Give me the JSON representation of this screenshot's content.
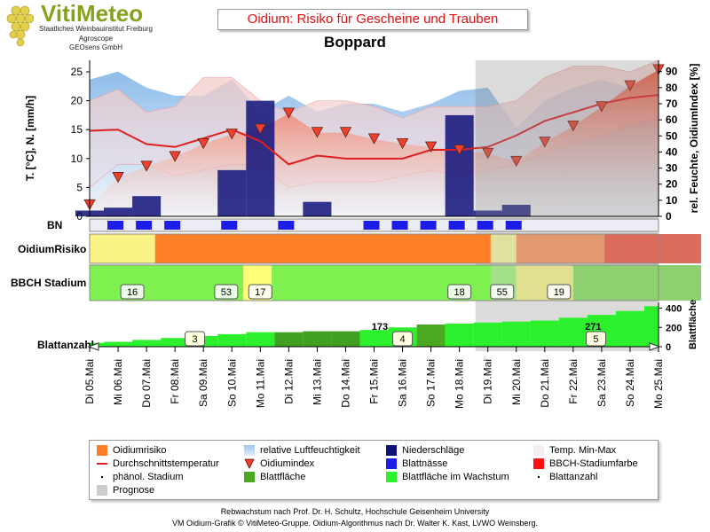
{
  "header": {
    "logo_name": "VitiMeteo",
    "logo_lines": [
      "Staatliches Weinbauinstitut Freiburg",
      "Agroscope",
      "GEOsens GmbH"
    ],
    "title": "Oidium: Risiko für Gescheine und Trauben",
    "location": "Boppard"
  },
  "chart_data": {
    "type": "area",
    "dates": [
      "Di 05.Mai",
      "Mi 06.Mai",
      "Do 07.Mai",
      "Fr 08.Mai",
      "Sa 09.Mai",
      "So 10.Mai",
      "Mo 11.Mai",
      "Di 12.Mai",
      "Mi 13.Mai",
      "Do 14.Mai",
      "Fr 15.Mai",
      "Sa 16.Mai",
      "So 17.Mai",
      "Mo 18.Mai",
      "Di 19.Mai",
      "Mi 20.Mai",
      "Do 21.Mai",
      "Fr 22.Mai",
      "Sa 23.Mai",
      "So 24.Mai",
      "Mo 25.Mai"
    ],
    "forecast_from": "Di 19.Mai",
    "y_left": {
      "label": "T. [°C], N. [mm/h]",
      "ticks": [
        0,
        5,
        10,
        15,
        20,
        25
      ],
      "range": [
        0,
        27
      ]
    },
    "y_right": {
      "label": "rel. Feuchte, OidiumIndex [%]",
      "ticks": [
        0,
        10,
        20,
        30,
        40,
        50,
        60,
        70,
        80,
        90
      ],
      "range": [
        0,
        97
      ]
    },
    "series": {
      "relative_humidity": [
        85,
        90,
        80,
        75,
        75,
        85,
        65,
        75,
        65,
        70,
        70,
        65,
        70,
        78,
        80,
        55,
        72,
        80,
        85,
        80,
        90
      ],
      "temp_mean": [
        14.8,
        15,
        12.5,
        12,
        13.5,
        15,
        13,
        9,
        10.5,
        10,
        10,
        10,
        11.5,
        11.5,
        12,
        14,
        16.5,
        18,
        19.5,
        20.5,
        21
      ],
      "temp_max": [
        20,
        22,
        18,
        19,
        24,
        24,
        20,
        18,
        20,
        20,
        19,
        17,
        19,
        19,
        19,
        20,
        24,
        26,
        26,
        25,
        27
      ],
      "temp_min": [
        5,
        9,
        9,
        7,
        8,
        9,
        9,
        5,
        6,
        6,
        6,
        7,
        8,
        7,
        8,
        9,
        11,
        13,
        14,
        16,
        17
      ],
      "oidium_index": [
        7,
        24,
        31,
        37,
        45,
        51,
        54,
        64,
        52,
        52,
        48,
        45,
        43,
        41,
        39,
        34,
        46,
        56,
        68,
        81,
        91
      ],
      "precipitation": [
        1,
        1.5,
        3.5,
        0,
        0,
        8,
        20,
        0,
        2.5,
        0,
        0,
        0,
        0,
        17.5,
        1,
        2,
        0,
        0,
        0,
        0,
        0
      ]
    },
    "bn_leaf_wetness_days": [
      1,
      2,
      3,
      5,
      7,
      10,
      11,
      12,
      13,
      14,
      15
    ],
    "risk_rows": {
      "label": "OidiumRisiko",
      "segments": [
        {
          "from": 0,
          "to": 2.3,
          "color": "#fbf286"
        },
        {
          "from": 2.3,
          "to": 14.1,
          "color": "#ff7f26"
        },
        {
          "from": 14.1,
          "to": 15.0,
          "color": "#e0e0a0"
        },
        {
          "from": 15.0,
          "to": 18.1,
          "color": "#e39a70"
        },
        {
          "from": 18.1,
          "to": 21.5,
          "color": "#dc6d5d"
        }
      ]
    },
    "bbch_row": {
      "label": "BBCH Stadium",
      "segments": [
        {
          "from": 0,
          "to": 5.4,
          "color": "#7ef050"
        },
        {
          "from": 5.4,
          "to": 6.4,
          "color": "#ffff78"
        },
        {
          "from": 6.4,
          "to": 14.1,
          "color": "#7ef050"
        },
        {
          "from": 14.1,
          "to": 15.0,
          "color": "#a4e08a"
        },
        {
          "from": 15.0,
          "to": 17.0,
          "color": "#e0e090"
        },
        {
          "from": 17.0,
          "to": 21.5,
          "color": "#8ed070"
        }
      ],
      "stages": [
        {
          "day": 1.5,
          "label": "16"
        },
        {
          "day": 4.8,
          "label": "53"
        },
        {
          "day": 6.0,
          "label": "17"
        },
        {
          "day": 13.0,
          "label": "18"
        },
        {
          "day": 14.5,
          "label": "55"
        },
        {
          "day": 16.5,
          "label": "19"
        }
      ]
    },
    "leaf_area": {
      "label": "Blattfläche",
      "ticks": [
        0,
        200,
        400
      ],
      "values": [
        40,
        50,
        70,
        90,
        110,
        130,
        150,
        150,
        160,
        160,
        173,
        200,
        230,
        240,
        250,
        260,
        271,
        300,
        330,
        370,
        420
      ],
      "annotations": [
        {
          "day": 10.2,
          "text": "173"
        },
        {
          "day": 17.7,
          "text": "271"
        }
      ],
      "leaf_count_labels": [
        {
          "day": 3.7,
          "label": "3"
        },
        {
          "day": 11.0,
          "label": "4"
        },
        {
          "day": 17.8,
          "label": "5"
        }
      ]
    },
    "row_labels": {
      "bn": "BN",
      "blattanzahl": "Blattanzahl"
    }
  },
  "legend": {
    "items": [
      {
        "text": "Oidiumrisiko",
        "sym": "orange-box"
      },
      {
        "text": "Durchschnittstemperatur",
        "sym": "red-line"
      },
      {
        "text": "phänol. Stadium",
        "sym": "dot"
      },
      {
        "text": "Prognose",
        "sym": "gray-box"
      },
      {
        "text": "relative Luftfeuchtigkeit",
        "sym": "blue-gradient"
      },
      {
        "text": "Oidiumindex",
        "sym": "red-triangle"
      },
      {
        "text": "Blattfläche",
        "sym": "green-box"
      },
      {
        "text": "Niederschläge",
        "sym": "navy-box"
      },
      {
        "text": "Blattnässe",
        "sym": "blue-box"
      },
      {
        "text": "Blattfläche im Wachstum",
        "sym": "lime-box"
      },
      {
        "text": "Temp. Min-Max",
        "sym": "pale-box"
      },
      {
        "text": "BBCH-Stadiumfarbe",
        "sym": "red-box"
      },
      {
        "text": "Blattanzahl",
        "sym": "dot"
      }
    ]
  },
  "footer": {
    "line1": "Rebwachstum nach Prof. Dr. H. Schultz, Hochschule Geisenheim University",
    "line2": "VM Oidium-Grafik © VitiMeteo-Gruppe. Oidium-Algorithmus nach Dr. Walter K. Kast, LVWO Weinsberg."
  }
}
